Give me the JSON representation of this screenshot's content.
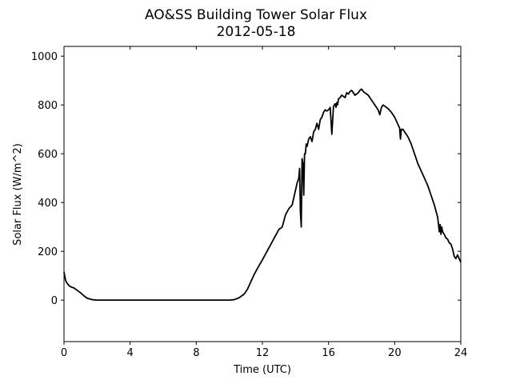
{
  "chart_data": {
    "type": "line",
    "title": "AO&SS Building Tower Solar Flux",
    "subtitle": "2012-05-18",
    "xlabel": "Time (UTC)",
    "ylabel": "Solar Flux (W/m^2)",
    "xlim": [
      0,
      24
    ],
    "ylim": [
      -170,
      1040
    ],
    "xticks": [
      0,
      4,
      8,
      12,
      16,
      20,
      24
    ],
    "yticks": [
      0,
      200,
      400,
      600,
      800,
      1000
    ],
    "grid": false,
    "line_color": "#000000",
    "series": [
      {
        "x": [
          0.0,
          0.1,
          0.2,
          0.3,
          0.4,
          0.5,
          0.6,
          0.8,
          1.0,
          1.2,
          1.4,
          1.7,
          2.0,
          3.0,
          4.0,
          5.0,
          6.0,
          7.0,
          8.0,
          9.0,
          10.0,
          10.3,
          10.6,
          10.9,
          11.1,
          11.3,
          11.5,
          11.7,
          12.0,
          12.2,
          12.4,
          12.6,
          12.8,
          13.0,
          13.2,
          13.4,
          13.6,
          13.8,
          13.9,
          14.0,
          14.1,
          14.2,
          14.25,
          14.3,
          14.35,
          14.4,
          14.45,
          14.5,
          14.55,
          14.6,
          14.65,
          14.7,
          14.8,
          14.9,
          15.0,
          15.1,
          15.2,
          15.3,
          15.4,
          15.5,
          15.6,
          15.7,
          15.8,
          15.9,
          16.0,
          16.1,
          16.2,
          16.3,
          16.4,
          16.45,
          16.5,
          16.55,
          16.6,
          16.7,
          16.8,
          16.9,
          17.0,
          17.1,
          17.2,
          17.3,
          17.4,
          17.5,
          17.6,
          17.7,
          17.8,
          17.9,
          18.0,
          18.1,
          18.2,
          18.3,
          18.4,
          18.5,
          18.6,
          18.7,
          18.8,
          18.9,
          19.0,
          19.1,
          19.2,
          19.3,
          19.4,
          19.6,
          19.8,
          20.0,
          20.2,
          20.3,
          20.35,
          20.4,
          20.5,
          20.6,
          20.8,
          21.0,
          21.2,
          21.4,
          21.6,
          21.8,
          22.0,
          22.2,
          22.4,
          22.6,
          22.7,
          22.75,
          22.8,
          22.85,
          22.9,
          23.0,
          23.1,
          23.2,
          23.3,
          23.4,
          23.5,
          23.6,
          23.7,
          23.8,
          23.9,
          24.0
        ],
        "y": [
          115,
          80,
          68,
          60,
          55,
          52,
          50,
          40,
          30,
          18,
          8,
          2,
          0,
          0,
          0,
          0,
          0,
          0,
          0,
          0,
          0,
          2,
          10,
          25,
          45,
          75,
          105,
          130,
          165,
          190,
          215,
          240,
          265,
          290,
          300,
          350,
          375,
          390,
          420,
          450,
          480,
          500,
          540,
          360,
          300,
          580,
          560,
          430,
          600,
          600,
          640,
          630,
          660,
          670,
          650,
          690,
          700,
          725,
          700,
          740,
          750,
          770,
          780,
          775,
          780,
          790,
          680,
          795,
          805,
          790,
          810,
          800,
          825,
          830,
          840,
          835,
          830,
          850,
          845,
          855,
          860,
          850,
          840,
          845,
          850,
          860,
          865,
          855,
          850,
          845,
          840,
          830,
          820,
          810,
          800,
          790,
          780,
          760,
          790,
          800,
          795,
          785,
          770,
          750,
          720,
          705,
          660,
          700,
          700,
          690,
          670,
          640,
          600,
          560,
          530,
          500,
          470,
          430,
          390,
          340,
          280,
          310,
          270,
          300,
          280,
          270,
          255,
          250,
          235,
          230,
          210,
          180,
          170,
          185,
          170,
          155
        ]
      }
    ]
  }
}
